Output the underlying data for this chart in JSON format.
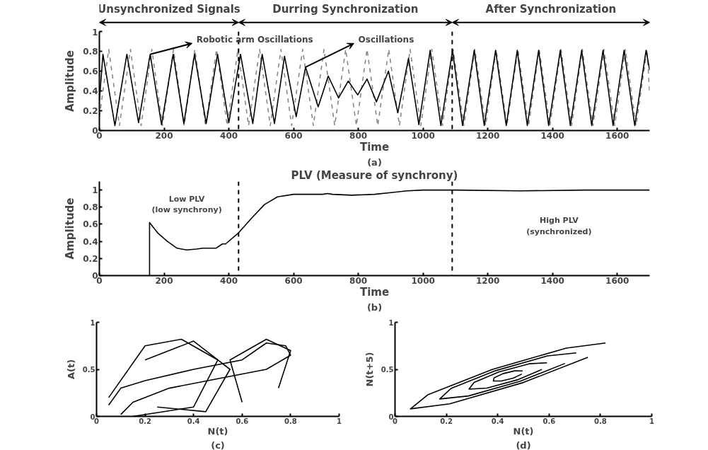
{
  "chart_data": [
    {
      "type": "line",
      "xlabel": "Time",
      "ylabel": "Amplitude",
      "xlim": [
        0,
        1700
      ],
      "ylim": [
        0,
        1
      ],
      "xticks": [
        0,
        200,
        400,
        600,
        800,
        1000,
        1200,
        1400,
        1600
      ],
      "yticks": [
        0,
        0.2,
        0.4,
        0.6,
        0.8,
        1
      ],
      "grid": false,
      "annotations": [
        "Unsynchronized Signals",
        "Durring Synchronization",
        "After Synchronization",
        {
          "text": "Robotic arm Oscillations",
          "x": 157,
          "y": 0.77
        },
        {
          "text": "Oscillations",
          "x": 637,
          "y": 0.64
        },
        "(a)"
      ],
      "ref_lines": [
        {
          "axis": "x",
          "value": 430,
          "color": "#000000",
          "line_style": "dashed"
        },
        {
          "axis": "x",
          "value": 1090,
          "color": "#000000",
          "line_style": "dashed"
        }
      ],
      "series": [
        {
          "color": "#888888",
          "line_style": "dashed",
          "x": [
            0,
            29,
            62,
            96,
            129,
            162,
            195,
            229,
            262,
            295,
            328,
            362,
            395,
            428,
            461,
            495,
            528,
            561,
            594,
            628,
            661,
            694,
            727,
            761,
            794,
            827,
            860,
            894,
            927,
            960,
            993,
            1027,
            1060,
            1093,
            1126,
            1160,
            1193,
            1226,
            1259,
            1293,
            1326,
            1359,
            1392,
            1426,
            1459,
            1492,
            1525,
            1559,
            1592,
            1625,
            1658,
            1692,
            1700
          ],
          "values": [
            0.14,
            0.82,
            0.05,
            0.82,
            0.05,
            0.82,
            0.05,
            0.82,
            0.05,
            0.82,
            0.05,
            0.82,
            0.05,
            0.82,
            0.05,
            0.82,
            0.05,
            0.82,
            0.05,
            0.82,
            0.05,
            0.82,
            0.05,
            0.82,
            0.05,
            0.82,
            0.05,
            0.82,
            0.05,
            0.82,
            0.05,
            0.82,
            0.05,
            0.82,
            0.05,
            0.82,
            0.05,
            0.82,
            0.05,
            0.82,
            0.05,
            0.82,
            0.05,
            0.82,
            0.05,
            0.82,
            0.05,
            0.82,
            0.05,
            0.82,
            0.05,
            0.82,
            0.37
          ]
        },
        {
          "color": "#000000",
          "line_style": "solid",
          "x": [
            0,
            11,
            48,
            85,
            121,
            157,
            192,
            228,
            261,
            294,
            330,
            365,
            400,
            436,
            474,
            503,
            541,
            572,
            608,
            637,
            676,
            707,
            739,
            769,
            798,
            827,
            856,
            893,
            922,
            955,
            987,
            1022,
            1055,
            1091,
            1122,
            1158,
            1189,
            1224,
            1257,
            1291,
            1322,
            1357,
            1388,
            1424,
            1455,
            1490,
            1521,
            1556,
            1587,
            1621,
            1654,
            1689,
            1700
          ],
          "values": [
            0.3,
            0.77,
            0.05,
            0.77,
            0.08,
            0.77,
            0.06,
            0.77,
            0.07,
            0.77,
            0.07,
            0.77,
            0.08,
            0.77,
            0.07,
            0.77,
            0.07,
            0.75,
            0.14,
            0.64,
            0.24,
            0.55,
            0.33,
            0.5,
            0.36,
            0.52,
            0.29,
            0.6,
            0.18,
            0.73,
            0.06,
            0.81,
            0.05,
            0.81,
            0.05,
            0.81,
            0.05,
            0.81,
            0.05,
            0.81,
            0.05,
            0.81,
            0.05,
            0.81,
            0.05,
            0.81,
            0.05,
            0.81,
            0.05,
            0.81,
            0.05,
            0.81,
            0.61
          ]
        }
      ]
    },
    {
      "type": "line",
      "title": "PLV (Measure of synchrony)",
      "xlabel": "Time",
      "ylabel": "Amplitude",
      "xlim": [
        0,
        1700
      ],
      "ylim": [
        0,
        1.1
      ],
      "xticks": [
        0,
        200,
        400,
        600,
        800,
        1000,
        1200,
        1400,
        1600
      ],
      "yticks": [
        0,
        0.2,
        0.4,
        0.6,
        0.8,
        1
      ],
      "grid": false,
      "annotations": [
        "Low PLV\n(low synchrony)",
        "High PLV\n(synchronized)",
        "(b)"
      ],
      "ref_lines": [
        {
          "axis": "x",
          "value": 430,
          "color": "#000000",
          "line_style": "dashed"
        },
        {
          "axis": "x",
          "value": 1090,
          "color": "#000000",
          "line_style": "dashed"
        }
      ],
      "series": [
        {
          "color": "#000000",
          "line_style": "solid",
          "x": [
            155,
            155,
            180,
            210,
            240,
            270,
            300,
            320,
            360,
            380,
            390,
            430,
            470,
            510,
            550,
            600,
            650,
            690,
            705,
            720,
            780,
            850,
            900,
            950,
            1000,
            1100,
            1300,
            1500,
            1700
          ],
          "values": [
            0,
            0.62,
            0.5,
            0.4,
            0.32,
            0.3,
            0.31,
            0.32,
            0.32,
            0.37,
            0.37,
            0.5,
            0.67,
            0.83,
            0.92,
            0.95,
            0.95,
            0.95,
            0.96,
            0.95,
            0.94,
            0.95,
            0.97,
            0.99,
            1.0,
            1.0,
            0.99,
            1.0,
            1.0
          ]
        }
      ]
    },
    {
      "type": "line",
      "xlabel": "N(t)",
      "ylabel": "A(t)",
      "xlim": [
        0,
        1
      ],
      "ylim": [
        0,
        1
      ],
      "xticks": [
        0,
        0.2,
        0.4,
        0.6,
        0.8,
        1
      ],
      "yticks": [
        0,
        0.5,
        1
      ],
      "grid": false,
      "annotations": [
        "(c)"
      ],
      "series": [
        {
          "color": "#000000",
          "x": [
            0.2,
            0.4,
            0.55,
            0.45,
            0.25
          ],
          "values": [
            0.6,
            0.8,
            0.5,
            0.05,
            0.1
          ]
        },
        {
          "color": "#000000",
          "x": [
            0.05,
            0.2,
            0.35,
            0.5,
            0.4,
            0.15
          ],
          "values": [
            0.2,
            0.75,
            0.82,
            0.6,
            0.1,
            0.0
          ]
        },
        {
          "color": "#000000",
          "x": [
            0.6,
            0.55,
            0.7,
            0.8,
            0.75
          ],
          "values": [
            0.15,
            0.6,
            0.82,
            0.7,
            0.3
          ]
        },
        {
          "color": "#000000",
          "x": [
            0.05,
            0.1,
            0.2,
            0.4,
            0.6,
            0.7,
            0.78,
            0.8,
            0.7,
            0.5,
            0.3,
            0.15,
            0.1
          ],
          "values": [
            0.12,
            0.3,
            0.38,
            0.5,
            0.6,
            0.78,
            0.75,
            0.65,
            0.5,
            0.4,
            0.3,
            0.15,
            0.02
          ]
        }
      ]
    },
    {
      "type": "line",
      "xlabel": "N(t)",
      "ylabel": "N(t+5)",
      "xlim": [
        0,
        1
      ],
      "ylim": [
        0,
        1
      ],
      "xticks": [
        0,
        0.2,
        0.4,
        0.6,
        0.8,
        1
      ],
      "yticks": [
        0,
        0.5,
        1
      ],
      "grid": false,
      "annotations": [
        "(d)"
      ],
      "series": [
        {
          "color": "#000000",
          "x": [
            0.82,
            0.667,
            0.38,
            0.129,
            0.06,
            0.213,
            0.5,
            0.751
          ],
          "values": [
            0.78,
            0.726,
            0.5,
            0.232,
            0.08,
            0.134,
            0.36,
            0.628
          ]
        },
        {
          "color": "#000000",
          "x": [
            0.706,
            0.594,
            0.392,
            0.218,
            0.174,
            0.286,
            0.488,
            0.662
          ],
          "values": [
            0.675,
            0.643,
            0.486,
            0.297,
            0.185,
            0.217,
            0.374,
            0.563
          ]
        },
        {
          "color": "#000000",
          "x": [
            0.592,
            0.522,
            0.404,
            0.308,
            0.288,
            0.358,
            0.476,
            0.572
          ],
          "values": [
            0.57,
            0.559,
            0.472,
            0.361,
            0.29,
            0.301,
            0.388,
            0.499
          ]
        },
        {
          "color": "#000000",
          "x": [
            0.497,
            0.466,
            0.42,
            0.386,
            0.383,
            0.414,
            0.46,
            0.494
          ],
          "values": [
            0.483,
            0.484,
            0.454,
            0.41,
            0.377,
            0.376,
            0.406,
            0.45
          ]
        }
      ]
    }
  ]
}
